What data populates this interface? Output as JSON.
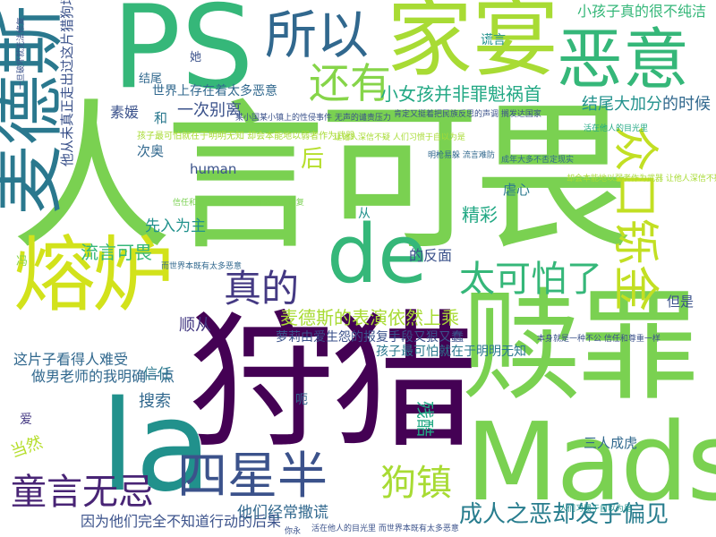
{
  "words": [
    {
      "text": "人言可畏",
      "color": "#7ad151"
    },
    {
      "text": "狩猎",
      "color": "#440154"
    },
    {
      "text": "赎罪",
      "color": "#7ad151"
    },
    {
      "text": "Mads",
      "color": "#7ad151"
    },
    {
      "text": "la",
      "color": "#21918c"
    },
    {
      "text": "PS",
      "color": "#35b779"
    },
    {
      "text": "家宴",
      "color": "#a8db34"
    },
    {
      "text": "熔炉",
      "color": "#d2e21b"
    },
    {
      "text": "麦德斯",
      "color": "#2a788e"
    },
    {
      "text": "恶意",
      "color": "#35b779"
    },
    {
      "text": "de",
      "color": "#35b779"
    },
    {
      "text": "所以",
      "color": "#31688e"
    },
    {
      "text": "还有",
      "color": "#86d549"
    },
    {
      "text": "众口铄金",
      "color": "#c2df23"
    },
    {
      "text": "四星半",
      "color": "#3b528b"
    },
    {
      "text": "太可怕了",
      "color": "#35b779"
    },
    {
      "text": "真的",
      "color": "#443983"
    },
    {
      "text": "童言无忌",
      "color": "#482475"
    },
    {
      "text": "成人之恶却发乎偏见",
      "color": "#287d8e"
    },
    {
      "text": "狗镇",
      "color": "#a8db34"
    },
    {
      "text": "麦德斯的表演依然上乘",
      "color": "#a8db34"
    },
    {
      "text": "小女孩并非罪魁祸首",
      "color": "#22a884"
    },
    {
      "text": "小孩子真的很不纯洁",
      "color": "#35b779"
    },
    {
      "text": "结尾大加分",
      "color": "#21918c"
    },
    {
      "text": "的时候",
      "color": "#31688e"
    },
    {
      "text": "后",
      "color": "#b5de2b"
    },
    {
      "text": "精彩",
      "color": "#22a884"
    },
    {
      "text": "虐心",
      "color": "#2a788e"
    },
    {
      "text": "残酷",
      "color": "#22a884"
    },
    {
      "text": "搜索",
      "color": "#31688e"
    },
    {
      "text": "当然",
      "color": "#b5de2b"
    },
    {
      "text": "信任",
      "color": "#2a788e"
    },
    {
      "text": "顺从",
      "color": "#443983"
    },
    {
      "text": "做男老师的我明确一点",
      "color": "#31688e"
    },
    {
      "text": "这片子看得人难受",
      "color": "#31688e"
    },
    {
      "text": "流言可畏",
      "color": "#35b779"
    },
    {
      "text": "先入为主",
      "color": "#21918c"
    },
    {
      "text": "一次别离",
      "color": "#3b528b"
    },
    {
      "text": "世界上存在着太多恶意",
      "color": "#31688e"
    },
    {
      "text": "素媛",
      "color": "#3b528b"
    },
    {
      "text": "和",
      "color": "#2a788e"
    },
    {
      "text": "次奥",
      "color": "#31688e"
    },
    {
      "text": "human",
      "color": "#3b528b"
    },
    {
      "text": "他从未真正走出过这片猎狗场",
      "color": "#3b528b"
    },
    {
      "text": "谎言",
      "color": "#21918c"
    },
    {
      "text": "因为他们完全不知道行动的后果",
      "color": "#3b528b"
    },
    {
      "text": "他们经常撒谎",
      "color": "#31688e"
    },
    {
      "text": "三人成虎",
      "color": "#31688e"
    },
    {
      "text": "萝莉由爱生怨的报复手段又狠又蠢",
      "color": "#3b528b"
    },
    {
      "text": "孩子最可怕就在于明明无知",
      "color": "#2a788e"
    },
    {
      "text": "但是",
      "color": "#3b528b"
    },
    {
      "text": "的反面",
      "color": "#3b528b"
    },
    {
      "text": "结尾",
      "color": "#31688e"
    },
    {
      "text": "她",
      "color": "#3b528b"
    },
    {
      "text": "爱",
      "color": "#443983"
    },
    {
      "text": "呃",
      "color": "#31688e"
    },
    {
      "text": "从",
      "color": "#21918c"
    },
    {
      "text": "冯",
      "color": "#86d549"
    },
    {
      "text": "孩子最可怕就在于明明无知 却会本能地以弱者作为武器",
      "color": "#a8db34"
    },
    {
      "text": "某小国某小镇上的性侵事件 无声的谴责压力",
      "color": "#3b528b"
    },
    {
      "text": "肯定又挺着把民族反思的声调 搁发达国家",
      "color": "#3b528b"
    },
    {
      "text": "信任和尊重一样 一旦破坏就无法修复",
      "color": "#7ad151"
    },
    {
      "text": "让他人深信不疑 人们习惯于自以为是",
      "color": "#a8db34"
    },
    {
      "text": "活在他人的目光里 而世界本既有太多恶意",
      "color": "#3b528b"
    },
    {
      "text": "本身就是一种不公 信任和尊重一样",
      "color": "#3b528b"
    },
    {
      "text": "却会本能地以弱者作为武器 让他人深信不疑",
      "color": "#a8db34"
    },
    {
      "text": "明枪易躲 流言难防",
      "color": "#31688e"
    },
    {
      "text": "一旦破坏就无法修复",
      "color": "#3b528b"
    },
    {
      "text": "而世界本既有太多恶意",
      "color": "#31688e"
    },
    {
      "text": "人们习惯于自以为是",
      "color": "#21918c"
    },
    {
      "text": "活在他人的目光里",
      "color": "#22a884"
    },
    {
      "text": "成年大多不否定现实",
      "color": "#31688e"
    },
    {
      "text": "你永",
      "color": "#3b528b"
    }
  ]
}
